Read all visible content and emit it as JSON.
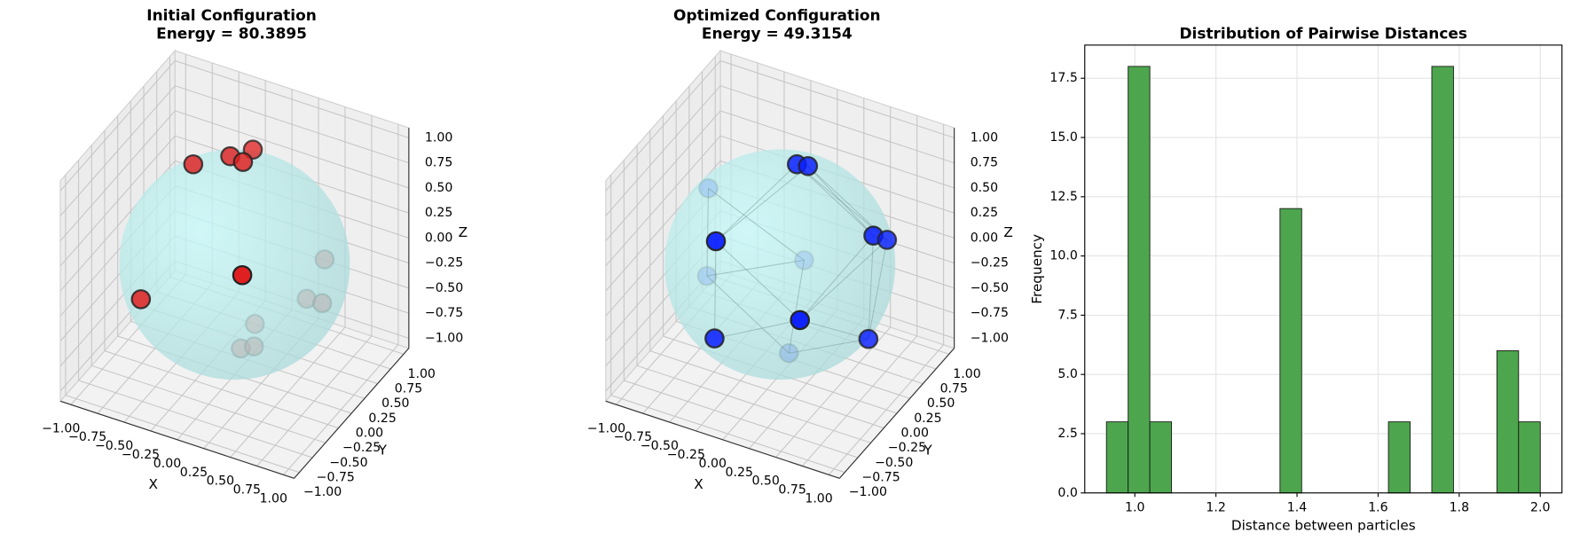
{
  "chart_data": [
    {
      "type": "scatter3d",
      "title": "Initial Configuration",
      "subtitle": "Energy = 80.3895",
      "xlabel": "X",
      "ylabel": "Y",
      "zlabel": "Z",
      "color": "#e02020",
      "x": [
        -0.34,
        -0.09,
        0,
        0.04,
        0.43,
        0.44,
        -0.44,
        0.34,
        0.52,
        -0.03,
        -0.04,
        0.05
      ],
      "y": [
        -0.1,
        0.1,
        0.35,
        0.08,
        0.85,
        -0.75,
        -0.9,
        0.69,
        0.62,
        0.45,
        0.2,
        0.27
      ],
      "z": [
        0.94,
        0.99,
        0.94,
        0.99,
        -0.3,
        0.49,
        0.03,
        -0.63,
        -0.57,
        -0.87,
        -0.97,
        -0.96
      ],
      "xlim": [
        -1.1,
        1.1
      ],
      "ylim": [
        -1.1,
        1.1
      ],
      "zlim": [
        -1.1,
        1.1
      ],
      "xticks": [
        {
          "value": -1,
          "label": "−1.00"
        },
        {
          "value": -0.75,
          "label": "−0.75"
        },
        {
          "value": -0.5,
          "label": "−0.50"
        },
        {
          "value": -0.25,
          "label": "−0.25"
        },
        {
          "value": 0,
          "label": "0.00"
        },
        0.25,
        {
          "value": 0.5,
          "label": "0.50"
        },
        0.75,
        {
          "value": 1,
          "label": "1.00"
        }
      ],
      "yticks": [
        {
          "value": -1,
          "label": "−1.00"
        },
        {
          "value": -0.75,
          "label": "−0.75"
        },
        {
          "value": -0.5,
          "label": "−0.50"
        },
        {
          "value": -0.25,
          "label": "−0.25"
        },
        {
          "value": 0,
          "label": "0.00"
        },
        0.25,
        {
          "value": 0.5,
          "label": "0.50"
        },
        0.75,
        {
          "value": 1,
          "label": "1.00"
        }
      ],
      "zticks": [
        {
          "value": -1,
          "label": "−1.00"
        },
        {
          "value": -0.75,
          "label": "−0.75"
        },
        {
          "value": -0.5,
          "label": "−0.50"
        },
        {
          "value": -0.25,
          "label": "−0.25"
        },
        {
          "value": 0,
          "label": "0.00"
        },
        0.25,
        {
          "value": 0.5,
          "label": "0.50"
        },
        0.75,
        {
          "value": 1,
          "label": "1.00"
        }
      ],
      "grid": true
    },
    {
      "type": "scatter3d",
      "title": "Optimized Configuration",
      "subtitle": "Energy = 49.3154",
      "xlabel": "X",
      "ylabel": "Y",
      "zlabel": "Z",
      "color": "#0a1eff",
      "edges": true,
      "x": [
        0.11,
        0.19,
        -0.87,
        0.83,
        0.86,
        -0.23,
        -0.18,
        -0.8,
        0.58,
        -0.15,
        0.93,
        0.01
      ],
      "y": [
        0.1,
        0.15,
        0.4,
        0.1,
        0.3,
        -0.76,
        0.83,
        0.23,
        -0.8,
        -0.95,
        -0.2,
        0.15
      ],
      "z": [
        0.98,
        0.96,
        0.22,
        0.52,
        0.37,
        0.6,
        -0.51,
        -0.53,
        0.12,
        -0.23,
        -0.3,
        -0.97
      ],
      "xlim": [
        -1.1,
        1.1
      ],
      "ylim": [
        -1.1,
        1.1
      ],
      "zlim": [
        -1.1,
        1.1
      ],
      "xticks": [
        {
          "value": -1,
          "label": "−1.00"
        },
        {
          "value": -0.75,
          "label": "−0.75"
        },
        {
          "value": -0.5,
          "label": "−0.50"
        },
        {
          "value": -0.25,
          "label": "−0.25"
        },
        {
          "value": 0,
          "label": "0.00"
        },
        0.25,
        {
          "value": 0.5,
          "label": "0.50"
        },
        0.75,
        {
          "value": 1,
          "label": "1.00"
        }
      ],
      "yticks": [
        {
          "value": -1,
          "label": "−1.00"
        },
        {
          "value": -0.75,
          "label": "−0.75"
        },
        {
          "value": -0.5,
          "label": "−0.50"
        },
        {
          "value": -0.25,
          "label": "−0.25"
        },
        {
          "value": 0,
          "label": "0.00"
        },
        0.25,
        {
          "value": 0.5,
          "label": "0.50"
        },
        0.75,
        {
          "value": 1,
          "label": "1.00"
        }
      ],
      "zticks": [
        {
          "value": -1,
          "label": "−1.00"
        },
        {
          "value": -0.75,
          "label": "−0.75"
        },
        {
          "value": -0.5,
          "label": "−0.50"
        },
        {
          "value": -0.25,
          "label": "−0.25"
        },
        {
          "value": 0,
          "label": "0.00"
        },
        0.25,
        {
          "value": 0.5,
          "label": "0.50"
        },
        0.75,
        {
          "value": 1,
          "label": "1.00"
        }
      ],
      "grid": true
    },
    {
      "type": "histogram",
      "title": "Distribution of Pairwise Distances",
      "xlabel": "Distance between particles",
      "ylabel": "Frequency",
      "color": "#4da64d",
      "bins": [
        0.93,
        0.9835,
        1.037,
        1.0905,
        1.144,
        1.1975,
        1.251,
        1.3045,
        1.358,
        1.4115,
        1.465,
        1.5185,
        1.572,
        1.6255,
        1.679,
        1.7325,
        1.786,
        1.8395,
        1.893,
        1.9465,
        2.0
      ],
      "values": [
        3,
        18,
        3,
        0,
        0,
        0,
        0,
        0,
        12,
        0,
        0,
        0,
        0,
        3,
        0,
        18,
        0,
        0,
        6,
        3
      ],
      "xlim": [
        0.8765,
        2.0535
      ],
      "ylim": [
        0,
        18.9
      ],
      "xticks": [
        {
          "value": 1,
          "label": "1.0"
        },
        1.2,
        1.4,
        1.6,
        1.8,
        {
          "value": 2,
          "label": "2.0"
        }
      ],
      "yticks": [
        {
          "value": 0,
          "label": "0.0"
        },
        2.5,
        {
          "value": 5,
          "label": "5.0"
        },
        7.5,
        {
          "value": 10,
          "label": "10.0"
        },
        12.5,
        {
          "value": 15,
          "label": "15.0"
        },
        17.5
      ],
      "grid": true
    }
  ]
}
